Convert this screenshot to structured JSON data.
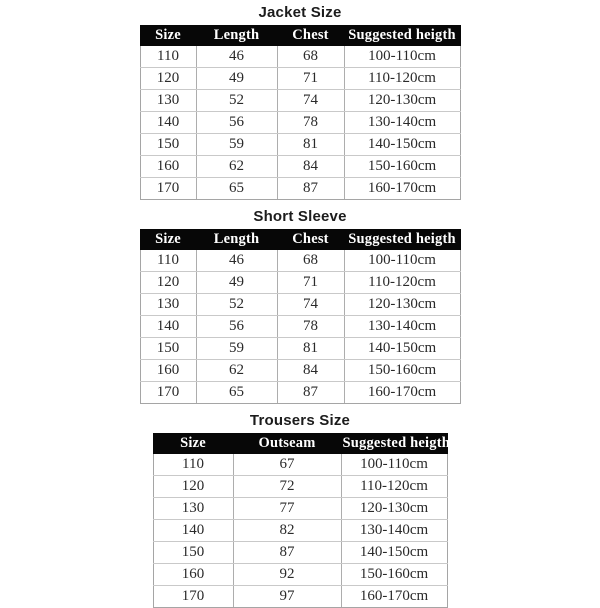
{
  "colors": {
    "page_background": "#ffffff",
    "header_background": "#070707",
    "header_text": "#ffffff",
    "body_text": "#2a2a2a",
    "border": "#adadad"
  },
  "tables": [
    {
      "title": "Jacket Size",
      "headers": [
        "Size",
        "Length",
        "Chest",
        "Suggested heigth"
      ],
      "rows": [
        [
          "110",
          "46",
          "68",
          "100-110cm"
        ],
        [
          "120",
          "49",
          "71",
          "110-120cm"
        ],
        [
          "130",
          "52",
          "74",
          "120-130cm"
        ],
        [
          "140",
          "56",
          "78",
          "130-140cm"
        ],
        [
          "150",
          "59",
          "81",
          "140-150cm"
        ],
        [
          "160",
          "62",
          "84",
          "150-160cm"
        ],
        [
          "170",
          "65",
          "87",
          "160-170cm"
        ]
      ]
    },
    {
      "title": "Short Sleeve",
      "headers": [
        "Size",
        "Length",
        "Chest",
        "Suggested heigth"
      ],
      "rows": [
        [
          "110",
          "46",
          "68",
          "100-110cm"
        ],
        [
          "120",
          "49",
          "71",
          "110-120cm"
        ],
        [
          "130",
          "52",
          "74",
          "120-130cm"
        ],
        [
          "140",
          "56",
          "78",
          "130-140cm"
        ],
        [
          "150",
          "59",
          "81",
          "140-150cm"
        ],
        [
          "160",
          "62",
          "84",
          "150-160cm"
        ],
        [
          "170",
          "65",
          "87",
          "160-170cm"
        ]
      ]
    },
    {
      "title": "Trousers Size",
      "headers": [
        "Size",
        "Outseam",
        "Suggested heigth"
      ],
      "rows": [
        [
          "110",
          "67",
          "100-110cm"
        ],
        [
          "120",
          "72",
          "110-120cm"
        ],
        [
          "130",
          "77",
          "120-130cm"
        ],
        [
          "140",
          "82",
          "130-140cm"
        ],
        [
          "150",
          "87",
          "140-150cm"
        ],
        [
          "160",
          "92",
          "150-160cm"
        ],
        [
          "170",
          "97",
          "160-170cm"
        ]
      ]
    }
  ]
}
